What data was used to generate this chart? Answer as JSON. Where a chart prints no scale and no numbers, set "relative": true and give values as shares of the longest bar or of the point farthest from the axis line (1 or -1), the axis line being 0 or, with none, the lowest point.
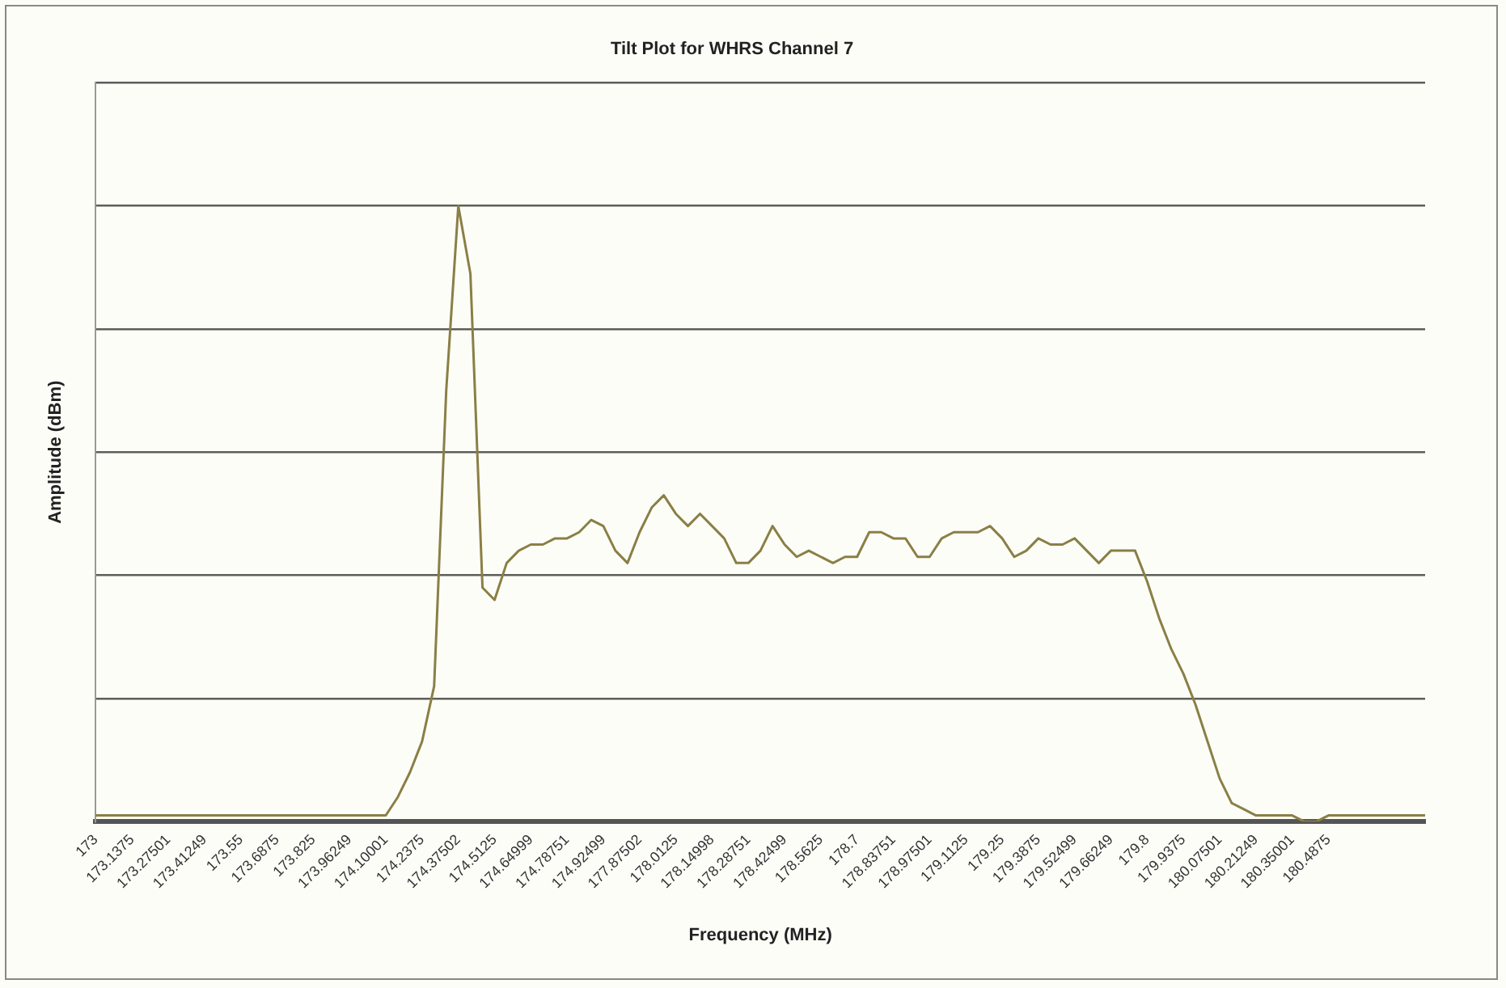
{
  "chart_data": {
    "type": "line",
    "title": "Tilt Plot for WHRS Channel 7",
    "xlabel": "Frequency (MHz)",
    "ylabel": "Amplitude (dBm)",
    "relative": true,
    "grid": "y",
    "legend": false,
    "marker": "none",
    "categories": [
      "173",
      null,
      null,
      "173.1375",
      null,
      null,
      "173.27501",
      null,
      null,
      "173.41249",
      null,
      null,
      "173.55",
      null,
      null,
      "173.6875",
      null,
      null,
      "173.825",
      null,
      null,
      "173.96249",
      null,
      null,
      "174.10001",
      null,
      null,
      "174.2375",
      null,
      null,
      "174.37502",
      null,
      null,
      "174.5125",
      null,
      null,
      "174.64999",
      null,
      null,
      "174.78751",
      null,
      null,
      "174.92499",
      null,
      null,
      "177.87502",
      null,
      null,
      "178.0125",
      null,
      null,
      "178.14998",
      null,
      null,
      "178.28751",
      null,
      null,
      "178.42499",
      null,
      null,
      "178.5625",
      null,
      null,
      "178.7",
      null,
      null,
      "178.83751",
      null,
      null,
      "178.97501",
      null,
      null,
      "179.1125",
      null,
      null,
      "179.25",
      null,
      null,
      "179.3875",
      null,
      null,
      "179.52499",
      null,
      null,
      "179.66249",
      null,
      null,
      "179.8",
      null,
      null,
      "179.9375",
      null,
      null,
      "180.07501",
      null,
      null,
      "180.21249",
      null,
      null,
      "180.35001",
      null,
      null,
      "180.4875",
      null,
      null,
      null,
      null,
      null,
      null,
      null,
      null
    ],
    "series": [
      {
        "color": "#8a7f45",
        "values": [
          0.01,
          0.01,
          0.01,
          0.01,
          0.01,
          0.01,
          0.01,
          0.01,
          0.01,
          0.01,
          0.01,
          0.01,
          0.01,
          0.01,
          0.01,
          0.01,
          0.01,
          0.01,
          0.01,
          0.01,
          0.01,
          0.01,
          0.01,
          0.01,
          0.01,
          0.04,
          0.08,
          0.13,
          0.22,
          0.7,
          1,
          0.89,
          0.38,
          0.36,
          0.42,
          0.44,
          0.45,
          0.45,
          0.46,
          0.46,
          0.47,
          0.49,
          0.48,
          0.44,
          0.42,
          0.47,
          0.51,
          0.53,
          0.5,
          0.48,
          0.5,
          0.48,
          0.46,
          0.42,
          0.42,
          0.44,
          0.48,
          0.45,
          0.43,
          0.44,
          0.43,
          0.42,
          0.43,
          0.43,
          0.47,
          0.47,
          0.46,
          0.46,
          0.43,
          0.43,
          0.46,
          0.47,
          0.47,
          0.47,
          0.48,
          0.46,
          0.43,
          0.44,
          0.46,
          0.45,
          0.45,
          0.46,
          0.44,
          0.42,
          0.44,
          0.44,
          0.44,
          0.39,
          0.33,
          0.28,
          0.24,
          0.19,
          0.13,
          0.07,
          0.03,
          0.02,
          0.01,
          0.01,
          0.01,
          0.01,
          0,
          0,
          0.01,
          0.01,
          0.01,
          0.01,
          0.01,
          0.01,
          0.01,
          0.01,
          0.01
        ]
      }
    ]
  }
}
